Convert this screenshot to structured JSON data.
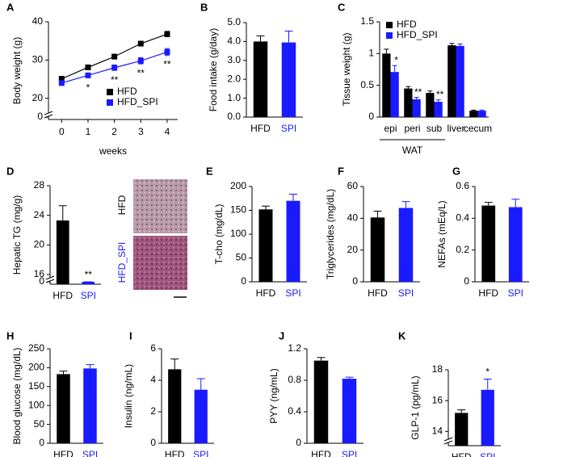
{
  "chart_data": [
    {
      "type": "line",
      "panel": "A",
      "ylabel": "Body weight (g)",
      "xlabel": "weeks",
      "x": [
        0,
        1,
        2,
        3,
        4
      ],
      "xlim": [
        -0.5,
        4.4
      ],
      "xticks": [
        0,
        1,
        2,
        3,
        4
      ],
      "ylim": [
        17,
        40
      ],
      "yticks": [
        0,
        20,
        30,
        40
      ],
      "axis_break": true,
      "legend": "lower right",
      "series": [
        {
          "name": "HFD",
          "color": "#000000",
          "values": [
            25.1,
            28.1,
            30.9,
            34.3,
            36.8
          ],
          "errors": [
            0.6,
            0.6,
            0.6,
            0.6,
            0.7
          ]
        },
        {
          "name": "HFD_SPI",
          "color": "#1a1aff",
          "values": [
            24.0,
            26.0,
            28.0,
            29.8,
            32.1
          ],
          "errors": [
            0.6,
            0.6,
            0.7,
            0.8,
            0.9
          ],
          "stars": [
            null,
            "*",
            "**",
            "**",
            "**"
          ]
        }
      ]
    },
    {
      "type": "bar",
      "panel": "B",
      "ylabel": "Food intake (g/day)",
      "categories": [
        "HFD",
        "SPI"
      ],
      "colors": [
        "#000000",
        "#1a1aff"
      ],
      "values": [
        4.0,
        3.95
      ],
      "errors": [
        0.3,
        0.6
      ],
      "ylim": [
        0,
        5
      ],
      "yticks": [
        {
          "value": 0,
          "label": "0.0"
        },
        {
          "value": 1,
          "label": "1.0"
        },
        {
          "value": 2,
          "label": "2.0"
        },
        {
          "value": 3,
          "label": "3.0"
        },
        {
          "value": 4,
          "label": "4.0"
        },
        {
          "value": 5,
          "label": "5.0"
        }
      ]
    },
    {
      "type": "grouped-bar",
      "panel": "C",
      "ylabel": "Tissue weight (g)",
      "legend": "upper left",
      "categories": [
        "epi",
        "peri",
        "sub",
        "liver",
        "cecum"
      ],
      "groups": [
        {
          "name": "WAT",
          "members": [
            "epi",
            "peri",
            "sub"
          ]
        }
      ],
      "ylim": [
        0,
        1.5
      ],
      "yticks": [
        0,
        0.5,
        1,
        1.5
      ],
      "series": [
        {
          "name": "HFD",
          "color": "#000000",
          "values": [
            1.0,
            0.45,
            0.38,
            1.13,
            0.1
          ],
          "errors": [
            0.07,
            0.03,
            0.03,
            0.03,
            0.01
          ]
        },
        {
          "name": "HFD_SPI",
          "color": "#1a1aff",
          "values": [
            0.71,
            0.28,
            0.24,
            1.12,
            0.1
          ],
          "errors": [
            0.1,
            0.03,
            0.03,
            0.03,
            0.01
          ],
          "stars": [
            "*",
            "**",
            "**",
            null,
            null
          ]
        }
      ]
    },
    {
      "type": "bar",
      "panel": "D",
      "ylabel": "Hepatic TG (mg/g)",
      "categories": [
        "HFD",
        "SPI"
      ],
      "colors": [
        "#000000",
        "#1a1aff"
      ],
      "values": [
        23.3,
        13.5
      ],
      "errors": [
        2.0,
        1.6
      ],
      "stars": [
        null,
        "**"
      ],
      "ylim": [
        16,
        28
      ],
      "yticks": [
        0,
        16,
        20,
        24,
        28
      ],
      "axis_break": true,
      "image_labels": [
        "HFD",
        "HFD_SPI"
      ]
    },
    {
      "type": "bar",
      "panel": "E",
      "ylabel": "T-cho (mg/dL)",
      "categories": [
        "HFD",
        "SPI"
      ],
      "colors": [
        "#000000",
        "#1a1aff"
      ],
      "values": [
        152,
        170
      ],
      "errors": [
        7,
        14
      ],
      "ylim": [
        0,
        200
      ],
      "yticks": [
        0,
        50,
        100,
        150,
        200
      ]
    },
    {
      "type": "bar",
      "panel": "F",
      "ylabel": "Triglycerides (mg/dL)",
      "categories": [
        "HFD",
        "SPI"
      ],
      "colors": [
        "#000000",
        "#1a1aff"
      ],
      "values": [
        40.5,
        46.5
      ],
      "errors": [
        4,
        4
      ],
      "ylim": [
        0,
        60
      ],
      "yticks": [
        0,
        20,
        40,
        60
      ]
    },
    {
      "type": "bar",
      "panel": "G",
      "ylabel": "NEFAs (mEq/L)",
      "categories": [
        "HFD",
        "SPI"
      ],
      "colors": [
        "#000000",
        "#1a1aff"
      ],
      "values": [
        0.48,
        0.47
      ],
      "errors": [
        0.02,
        0.05
      ],
      "ylim": [
        0,
        0.6
      ],
      "yticks": [
        0,
        0.2,
        0.4,
        0.6
      ]
    },
    {
      "type": "bar",
      "panel": "H",
      "ylabel": "Blood glucose (mg/dL)",
      "categories": [
        "HFD",
        "SPI"
      ],
      "colors": [
        "#000000",
        "#1a1aff"
      ],
      "values": [
        183,
        198
      ],
      "errors": [
        8,
        10
      ],
      "ylim": [
        0,
        250
      ],
      "yticks": [
        0,
        50,
        100,
        150,
        200,
        250
      ]
    },
    {
      "type": "bar",
      "panel": "I",
      "ylabel": "Insulin (ng/mL)",
      "categories": [
        "HFD",
        "SPI"
      ],
      "colors": [
        "#000000",
        "#1a1aff"
      ],
      "values": [
        4.7,
        3.4
      ],
      "errors": [
        0.65,
        0.7
      ],
      "ylim": [
        0,
        6
      ],
      "yticks": [
        0,
        2,
        4,
        6
      ]
    },
    {
      "type": "bar",
      "panel": "J",
      "ylabel": "PYY (ng/mL)",
      "categories": [
        "HFD",
        "SPI"
      ],
      "colors": [
        "#000000",
        "#1a1aff"
      ],
      "values": [
        1.05,
        0.82
      ],
      "errors": [
        0.04,
        0.02
      ],
      "ylim": [
        0,
        1.2
      ],
      "yticks": [
        0,
        0.4,
        0.8,
        1.2
      ]
    },
    {
      "type": "bar",
      "panel": "K",
      "ylabel": "GLP-1 (pg/mL)",
      "categories": [
        "HFD",
        "SPI"
      ],
      "colors": [
        "#000000",
        "#1a1aff"
      ],
      "values": [
        15.2,
        16.7
      ],
      "errors": [
        0.2,
        0.7
      ],
      "stars": [
        null,
        "*"
      ],
      "ylim": [
        13.7,
        18
      ],
      "yticks": [
        14,
        16,
        18
      ],
      "axis_break": true
    }
  ]
}
